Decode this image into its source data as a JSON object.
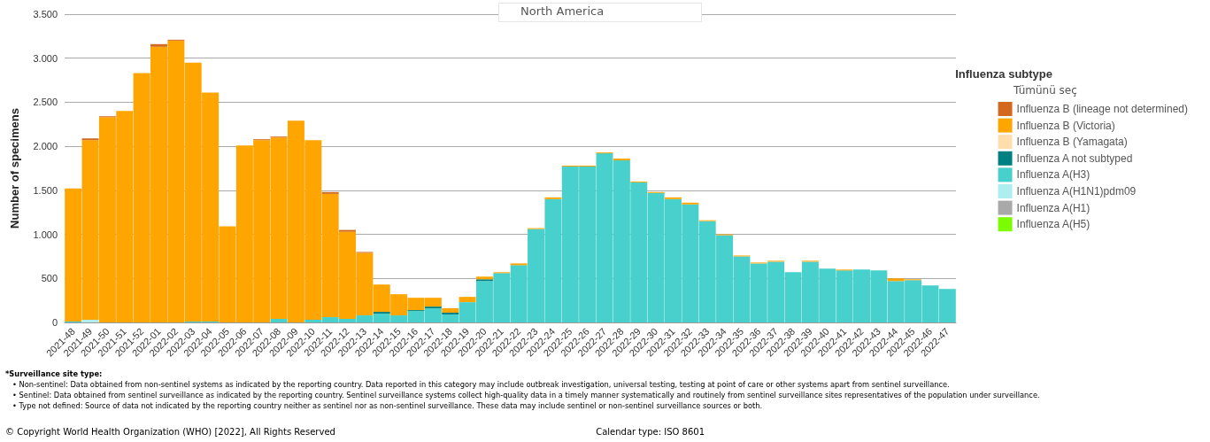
{
  "chart_data": {
    "type": "bar",
    "stacked": true,
    "ylabel": "Number of specimens",
    "legend_title": "Influenza subtype",
    "legend": "right",
    "grid": "y",
    "categories": [
      "2021-48",
      "2021-49",
      "2021-50",
      "2021-51",
      "2021-52",
      "2022-01",
      "2022-02",
      "2022-03",
      "2022-04",
      "2022-05",
      "2022-06",
      "2022-07",
      "2022-08",
      "2022-09",
      "2022-10",
      "2022-11",
      "2022-12",
      "2022-13",
      "2022-14",
      "2022-15",
      "2022-16",
      "2022-17",
      "2022-18",
      "2022-19",
      "2022-20",
      "2022-21",
      "2022-22",
      "2022-23",
      "2022-24",
      "2022-25",
      "2022-26",
      "2022-27",
      "2022-28",
      "2022-29",
      "2022-30",
      "2022-31",
      "2022-32",
      "2022-33",
      "2022-34",
      "2022-35",
      "2022-36",
      "2022-37",
      "2022-38",
      "2022-39",
      "2022-40",
      "2022-41",
      "2022-42",
      "2022-43",
      "2022-44",
      "2022-45",
      "2022-46",
      "2022-47"
    ],
    "ylim": [
      0,
      3500
    ],
    "yticks": [
      {
        "value": 0,
        "label": "0"
      },
      {
        "value": 500,
        "label": "500"
      },
      {
        "value": 1000,
        "label": "1.000"
      },
      {
        "value": 1500,
        "label": "1.500"
      },
      {
        "value": 2000,
        "label": "2.000"
      },
      {
        "value": 2500,
        "label": "2.500"
      },
      {
        "value": 3000,
        "label": "3.000"
      },
      {
        "value": 3500,
        "label": "3.500"
      }
    ],
    "series": [
      {
        "name": "Influenza A(H5)",
        "color": "#7cfc00",
        "values": [
          null,
          null,
          null,
          null,
          null,
          null,
          null,
          null,
          null,
          null,
          null,
          null,
          null,
          null,
          null,
          null,
          null,
          null,
          null,
          null,
          null,
          null,
          null,
          null,
          null,
          null,
          null,
          null,
          null,
          null,
          null,
          null,
          null,
          null,
          null,
          null,
          null,
          null,
          null,
          null,
          null,
          null,
          null,
          null,
          null,
          null,
          null,
          null,
          null,
          null,
          null,
          null
        ]
      },
      {
        "name": "Influenza A(H1)",
        "color": "#a9a9a9",
        "values": [
          null,
          null,
          null,
          null,
          null,
          null,
          null,
          null,
          null,
          null,
          null,
          null,
          null,
          null,
          null,
          null,
          null,
          null,
          null,
          null,
          null,
          null,
          null,
          null,
          null,
          null,
          null,
          null,
          null,
          null,
          null,
          null,
          null,
          null,
          null,
          null,
          null,
          null,
          null,
          null,
          null,
          null,
          null,
          null,
          null,
          null,
          null,
          null,
          null,
          null,
          null,
          null
        ]
      },
      {
        "name": "Influenza A(H1N1)pdm09",
        "color": "#afeeee",
        "values": [
          null,
          30,
          null,
          null,
          null,
          null,
          null,
          null,
          null,
          null,
          null,
          null,
          null,
          null,
          null,
          null,
          null,
          null,
          null,
          null,
          null,
          null,
          null,
          null,
          null,
          null,
          null,
          null,
          null,
          null,
          null,
          null,
          null,
          null,
          null,
          null,
          null,
          null,
          null,
          null,
          null,
          null,
          null,
          null,
          null,
          null,
          null,
          null,
          null,
          null,
          null,
          null
        ]
      },
      {
        "name": "Influenza A(H3)",
        "color": "#48d1cc",
        "values": [
          10,
          null,
          null,
          null,
          null,
          null,
          null,
          10,
          10,
          null,
          null,
          null,
          40,
          null,
          30,
          60,
          40,
          80,
          100,
          80,
          130,
          160,
          90,
          230,
          470,
          560,
          650,
          1060,
          1400,
          1770,
          1770,
          1920,
          1840,
          1590,
          1470,
          1400,
          1340,
          1150,
          990,
          750,
          670,
          690,
          570,
          690,
          610,
          590,
          600,
          590,
          470,
          480,
          420,
          380
        ]
      },
      {
        "name": "Influenza A not subtyped",
        "color": "#008080",
        "values": [
          null,
          null,
          null,
          null,
          null,
          null,
          null,
          null,
          null,
          null,
          null,
          null,
          null,
          null,
          null,
          null,
          null,
          null,
          20,
          null,
          10,
          20,
          20,
          null,
          20,
          null,
          null,
          null,
          null,
          null,
          null,
          null,
          null,
          null,
          null,
          null,
          null,
          null,
          null,
          null,
          null,
          null,
          null,
          null,
          null,
          null,
          null,
          null,
          null,
          null,
          null,
          null
        ]
      },
      {
        "name": "Influenza B (Yamagata)",
        "color": "#ffdeae",
        "values": [
          null,
          null,
          null,
          null,
          null,
          null,
          null,
          null,
          null,
          null,
          null,
          null,
          null,
          null,
          null,
          null,
          null,
          null,
          null,
          null,
          null,
          null,
          null,
          null,
          null,
          null,
          null,
          null,
          null,
          null,
          null,
          null,
          null,
          null,
          null,
          null,
          null,
          null,
          null,
          null,
          null,
          null,
          null,
          null,
          null,
          null,
          null,
          null,
          null,
          null,
          null,
          null
        ]
      },
      {
        "name": "Influenza B (Victoria)",
        "color": "#ffa500",
        "values": [
          1510,
          2040,
          2330,
          2400,
          2830,
          3130,
          3200,
          2940,
          2600,
          1090,
          2010,
          2070,
          2060,
          2290,
          2040,
          1400,
          990,
          710,
          310,
          240,
          140,
          100,
          50,
          60,
          30,
          10,
          20,
          10,
          20,
          10,
          10,
          10,
          20,
          10,
          10,
          20,
          20,
          10,
          10,
          10,
          10,
          10,
          null,
          10,
          null,
          10,
          null,
          null,
          30,
          10,
          null,
          null
        ]
      },
      {
        "name": "Influenza B (lineage not determined)",
        "color": "#d2691e",
        "values": [
          null,
          20,
          10,
          null,
          null,
          30,
          10,
          null,
          null,
          null,
          null,
          10,
          10,
          null,
          null,
          20,
          20,
          10,
          null,
          null,
          null,
          null,
          null,
          null,
          null,
          null,
          null,
          null,
          null,
          null,
          null,
          null,
          null,
          null,
          null,
          null,
          null,
          null,
          null,
          null,
          null,
          null,
          null,
          null,
          null,
          null,
          null,
          null,
          null,
          null,
          null,
          null
        ]
      }
    ],
    "annotations": [
      "North America",
      "Tümünü seç",
      "*Surveillance site type:",
      "• Non-sentinel: Data obtained from non-sentinel systems as indicated by the reporting country. Data reported in this category may include outbreak investigation, universal testing, testing at point of care or other systems apart from sentinel surveillance.",
      "• Sentinel: Data obtained from sentinel surveillance as indicated by the reporting country. Sentinel surveillance systems collect high-quality data in a timely manner systematically and routinely from sentinel surveillance sites representatives of the population under surveillance.",
      "• Type not defined: Source of data not indicated by the reporting country neither as sentinel nor as non-sentinel surveillance. These data may include sentinel or non-sentinel surveillance sources or both.",
      "© Copyright World Health Organization (WHO) [2022], All Rights Reserved",
      "Calendar type: ISO 8601"
    ]
  }
}
